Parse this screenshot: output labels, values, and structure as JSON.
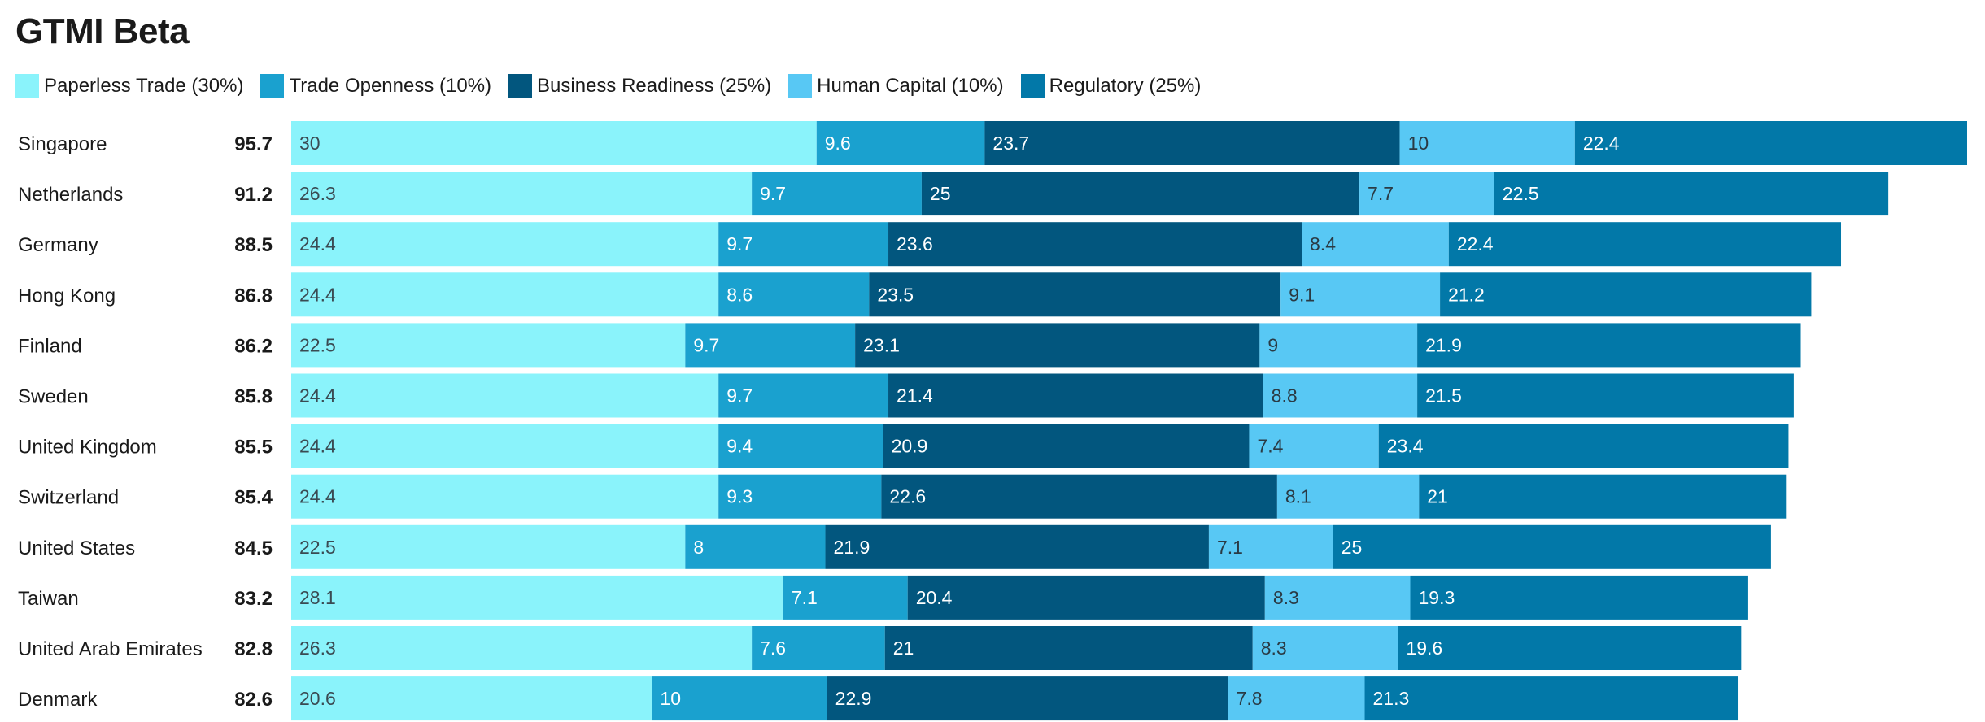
{
  "chart_data": {
    "type": "bar",
    "orientation": "horizontal",
    "stacked": true,
    "title": "GTMI Beta",
    "legend_position": "top-left",
    "grid": false,
    "xlim": [
      0,
      95.7
    ],
    "categories": [
      "Singapore",
      "Netherlands",
      "Germany",
      "Hong Kong",
      "Finland",
      "Sweden",
      "United Kingdom",
      "Switzerland",
      "United States",
      "Taiwan",
      "United Arab Emirates",
      "Denmark"
    ],
    "totals": [
      95.7,
      91.2,
      88.5,
      86.8,
      86.2,
      85.8,
      85.5,
      85.4,
      84.5,
      83.2,
      82.8,
      82.6
    ],
    "series": [
      {
        "name": "Paperless Trade (30%)",
        "color": "#8af3fb",
        "label_color": "#3a4a52",
        "values": [
          30,
          26.3,
          24.4,
          24.4,
          22.5,
          24.4,
          24.4,
          24.4,
          22.5,
          28.1,
          26.3,
          20.6
        ]
      },
      {
        "name": "Trade Openness (10%)",
        "color": "#1aa1cf",
        "label_color": "#ffffff",
        "values": [
          9.6,
          9.7,
          9.7,
          8.6,
          9.7,
          9.7,
          9.4,
          9.3,
          8,
          7.1,
          7.6,
          10
        ]
      },
      {
        "name": "Business Readiness (25%)",
        "color": "#02567e",
        "label_color": "#ffffff",
        "values": [
          23.7,
          25,
          23.6,
          23.5,
          23.1,
          21.4,
          20.9,
          22.6,
          21.9,
          20.4,
          21,
          22.9
        ]
      },
      {
        "name": "Human Capital (10%)",
        "color": "#58c8f4",
        "label_color": "#2a3a44",
        "values": [
          10,
          7.7,
          8.4,
          9.1,
          9,
          8.8,
          7.4,
          8.1,
          7.1,
          8.3,
          8.3,
          7.8
        ]
      },
      {
        "name": "Regulatory (25%)",
        "color": "#0278a8",
        "label_color": "#ffffff",
        "values": [
          22.4,
          22.5,
          22.4,
          21.2,
          21.9,
          21.5,
          23.4,
          21,
          25,
          19.3,
          19.6,
          21.3
        ]
      }
    ]
  }
}
